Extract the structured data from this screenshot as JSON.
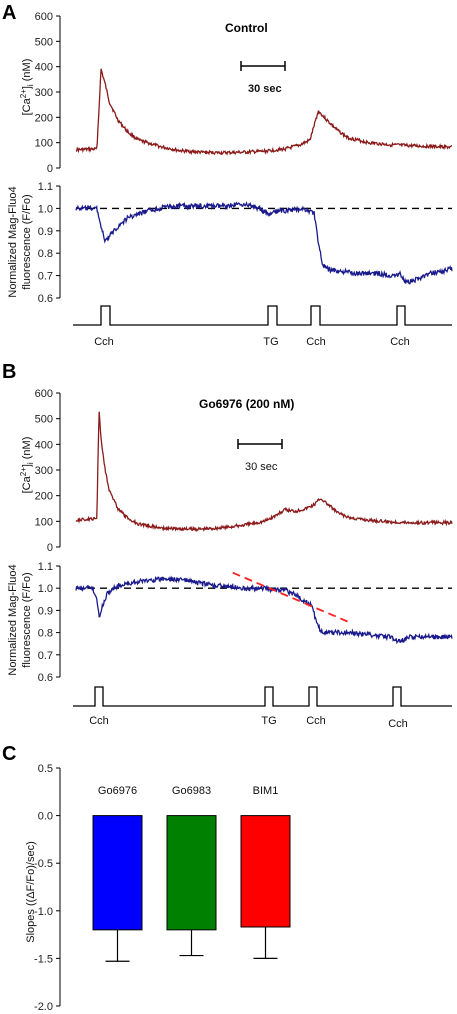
{
  "panels": {
    "a": {
      "letter": "A",
      "title": "Control",
      "scale_label": "30 sec",
      "ca_ylabel": "[Ca2+]i (nM)",
      "ca_ylabel_main": "[Ca",
      "ca_ylabel_sup": "2+",
      "ca_ylabel_end": "]",
      "ca_ylabel_sub": "i",
      "ca_ylabel_unit": " (nM)",
      "mag_ylabel_1": "Normalized Mag-Fluo4",
      "mag_ylabel_2": "fluorescence (F/Fo)",
      "stimuli": [
        "Cch",
        "TG",
        "Cch",
        "Cch"
      ]
    },
    "b": {
      "letter": "B",
      "title": "Go6976 (200 nM)",
      "scale_label": "30 sec",
      "ca_ylabel": "[Ca2+]i (nM)",
      "ca_ylabel_main": "[Ca",
      "ca_ylabel_sup": "2+",
      "ca_ylabel_end": "]",
      "ca_ylabel_sub": "i",
      "ca_ylabel_unit": " (nM)",
      "mag_ylabel_1": "Normalized Mag-Fluo4",
      "mag_ylabel_2": "fluorescence (F/Fo)",
      "stimuli": [
        "Cch",
        "TG",
        "Cch",
        "Cch"
      ]
    },
    "c": {
      "letter": "C",
      "ylabel": "Slopes ((ΔF/Fo)/sec)"
    }
  },
  "colors": {
    "calcium_trace": "#8b1a1a",
    "magfluo_trace": "#1a1a8c",
    "slope_fit": "#ff2020",
    "bar_go6976": "#0000ff",
    "bar_go6983": "#008000",
    "bar_bim1": "#ff0000"
  },
  "chart_data": [
    {
      "type": "line",
      "panel": "A",
      "title": "Control",
      "ylabel": "[Ca2+]i (nM)",
      "ylim": [
        0,
        600
      ],
      "yticks": [
        "0",
        "100",
        "200",
        "300",
        "400",
        "500",
        "600"
      ],
      "x_units": "sec (scale bar = 30 sec)",
      "series": [
        {
          "x": [
            0,
            10,
            12,
            14,
            16,
            20,
            25,
            30,
            40,
            50,
            60,
            70,
            80,
            90,
            100,
            107,
            112,
            116,
            120,
            125,
            130,
            140,
            150,
            160,
            170,
            180
          ],
          "y": [
            72,
            75,
            390,
            330,
            260,
            190,
            140,
            110,
            85,
            68,
            62,
            60,
            62,
            66,
            75,
            90,
            110,
            225,
            190,
            150,
            120,
            100,
            92,
            88,
            85,
            82
          ]
        }
      ]
    },
    {
      "type": "line",
      "panel": "A",
      "ylabel": "Normalized Mag-Fluo4 fluorescence (F/Fo)",
      "ylim": [
        0.6,
        1.1
      ],
      "yticks": [
        "0.6",
        "0.7",
        "0.8",
        "0.9",
        "1.0",
        "1.1"
      ],
      "reference_line": 1.0,
      "series": [
        {
          "x": [
            0,
            10,
            12,
            14,
            18,
            25,
            35,
            45,
            55,
            70,
            80,
            88,
            92,
            97,
            103,
            108,
            114,
            116,
            118,
            120,
            125,
            135,
            145,
            150,
            155,
            158,
            162,
            170,
            180
          ],
          "y": [
            1.0,
            1.0,
            0.92,
            0.85,
            0.9,
            0.96,
            0.99,
            1.01,
            1.01,
            1.01,
            1.02,
            1.0,
            0.97,
            0.99,
            0.99,
            1.0,
            0.98,
            0.85,
            0.75,
            0.73,
            0.72,
            0.71,
            0.71,
            0.7,
            0.71,
            0.67,
            0.68,
            0.71,
            0.73
          ]
        }
      ]
    },
    {
      "type": "line",
      "panel": "B",
      "title": "Go6976 (200 nM)",
      "ylabel": "[Ca2+]i (nM)",
      "ylim": [
        0,
        600
      ],
      "yticks": [
        "0",
        "100",
        "200",
        "300",
        "400",
        "500",
        "600"
      ],
      "series": [
        {
          "x": [
            0,
            10,
            11,
            12,
            14,
            16,
            20,
            25,
            30,
            40,
            50,
            60,
            70,
            80,
            90,
            95,
            100,
            105,
            110,
            114,
            117,
            120,
            125,
            130,
            140,
            150,
            160,
            170,
            180
          ],
          "y": [
            105,
            110,
            540,
            420,
            300,
            220,
            150,
            110,
            90,
            75,
            70,
            70,
            75,
            85,
            100,
            120,
            145,
            140,
            150,
            165,
            190,
            170,
            135,
            115,
            105,
            98,
            95,
            95,
            95
          ]
        }
      ]
    },
    {
      "type": "line",
      "panel": "B",
      "ylabel": "Normalized Mag-Fluo4 fluorescence (F/Fo)",
      "ylim": [
        0.6,
        1.1
      ],
      "yticks": [
        "0.6",
        "0.7",
        "0.8",
        "0.9",
        "1.0",
        "1.1"
      ],
      "reference_line": 1.0,
      "series": [
        {
          "x": [
            0,
            8,
            10,
            11,
            12,
            15,
            20,
            30,
            40,
            50,
            60,
            70,
            80,
            90,
            100,
            105,
            110,
            113,
            115,
            117,
            120,
            130,
            140,
            150,
            155,
            160,
            170,
            180
          ],
          "y": [
            1.0,
            1.0,
            0.95,
            0.87,
            0.9,
            0.98,
            1.01,
            1.03,
            1.04,
            1.04,
            1.02,
            1.01,
            1.0,
            1.0,
            0.99,
            0.97,
            0.94,
            0.92,
            0.85,
            0.81,
            0.8,
            0.8,
            0.79,
            0.78,
            0.76,
            0.78,
            0.78,
            0.78
          ]
        },
        {
          "name": "",
          "line_style": "dashed",
          "x": [
            75,
            130
          ],
          "y": [
            1.07,
            0.85
          ]
        }
      ]
    },
    {
      "type": "bar",
      "panel": "C",
      "categories": [
        "Go6976",
        "Go6983",
        "BIM1"
      ],
      "values": [
        -1.2,
        -1.2,
        -1.17
      ],
      "errors": [
        0.33,
        0.27,
        0.33
      ],
      "ylabel": "Slopes ((ΔF/Fo)/sec)",
      "ylim": [
        -2.0,
        0.5
      ],
      "yticks": [
        "0.5",
        "0.0",
        "-0.5",
        "-1.0",
        "-1.5",
        "-2.0"
      ]
    }
  ]
}
